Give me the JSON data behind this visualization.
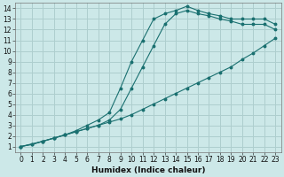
{
  "xlabel": "Humidex (Indice chaleur)",
  "background_color": "#cce8e8",
  "grid_color": "#aecece",
  "line_color": "#1a7070",
  "xlim": [
    -0.5,
    23.5
  ],
  "ylim": [
    0.5,
    14.5
  ],
  "xticks": [
    0,
    1,
    2,
    3,
    4,
    5,
    6,
    7,
    8,
    9,
    10,
    11,
    12,
    13,
    14,
    15,
    16,
    17,
    18,
    19,
    20,
    21,
    22,
    23
  ],
  "yticks": [
    1,
    2,
    3,
    4,
    5,
    6,
    7,
    8,
    9,
    10,
    11,
    12,
    13,
    14
  ],
  "curve1_x": [
    0,
    1,
    2,
    3,
    4,
    5,
    6,
    7,
    8,
    9,
    10,
    11,
    12,
    13,
    14,
    15,
    16,
    17,
    18,
    19,
    20,
    21,
    22,
    23
  ],
  "curve1_y": [
    1.0,
    1.2,
    1.5,
    1.8,
    2.1,
    2.4,
    2.7,
    3.0,
    3.3,
    3.6,
    4.0,
    4.5,
    5.0,
    5.5,
    6.0,
    6.5,
    7.0,
    7.5,
    8.0,
    8.5,
    9.2,
    9.8,
    10.5,
    11.2
  ],
  "curve2_x": [
    0,
    1,
    2,
    3,
    4,
    5,
    6,
    7,
    8,
    9,
    10,
    11,
    12,
    13,
    14,
    15,
    16,
    17,
    18,
    19,
    20,
    21,
    22,
    23
  ],
  "curve2_y": [
    1.0,
    1.2,
    1.5,
    1.8,
    2.1,
    2.4,
    2.7,
    3.0,
    3.5,
    4.5,
    6.5,
    8.5,
    10.5,
    12.5,
    13.5,
    13.8,
    13.5,
    13.3,
    13.0,
    12.8,
    12.5,
    12.5,
    12.5,
    12.0
  ],
  "curve3_x": [
    0,
    2,
    3,
    4,
    5,
    6,
    7,
    8,
    9,
    10,
    11,
    12,
    13,
    14,
    15,
    16,
    17,
    18,
    19,
    20,
    21,
    22,
    23
  ],
  "curve3_y": [
    1.0,
    1.5,
    1.8,
    2.1,
    2.5,
    3.0,
    3.5,
    4.2,
    6.5,
    9.0,
    11.0,
    13.0,
    13.5,
    13.8,
    14.2,
    13.8,
    13.5,
    13.3,
    13.0,
    13.0,
    13.0,
    13.0,
    12.5
  ]
}
